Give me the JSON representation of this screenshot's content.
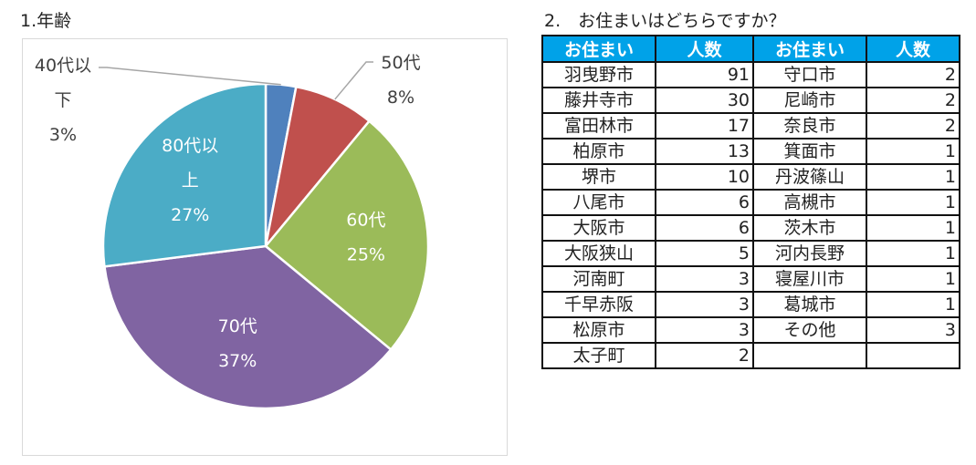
{
  "titles": {
    "age": "1.年齢",
    "residence": "2.　お住まいはどちらですか？"
  },
  "chart_data": {
    "type": "pie",
    "title": "1.年齢",
    "slices": [
      {
        "label": "40代以下",
        "label_lines": [
          "40代以",
          "下"
        ],
        "percent_label": "3%",
        "value": 3,
        "color": "#4F81BD"
      },
      {
        "label": "50代",
        "label_lines": [
          "50代"
        ],
        "percent_label": "8%",
        "value": 8,
        "color": "#C0504D"
      },
      {
        "label": "60代",
        "label_lines": [
          "60代"
        ],
        "percent_label": "25%",
        "value": 25,
        "color": "#9BBB59"
      },
      {
        "label": "70代",
        "label_lines": [
          "70代"
        ],
        "percent_label": "37%",
        "value": 37,
        "color": "#8064A2"
      },
      {
        "label": "80代以上",
        "label_lines": [
          "80代以",
          "上"
        ],
        "percent_label": "27%",
        "value": 27,
        "color": "#4BACC6"
      }
    ]
  },
  "table": {
    "headers": [
      "お住まい",
      "人数",
      "お住まい",
      "人数"
    ],
    "rows": [
      [
        "羽曳野市",
        "91",
        "守口市",
        "2"
      ],
      [
        "藤井寺市",
        "30",
        "尼崎市",
        "2"
      ],
      [
        "富田林市",
        "17",
        "奈良市",
        "2"
      ],
      [
        "柏原市",
        "13",
        "箕面市",
        "1"
      ],
      [
        "堺市",
        "10",
        "丹波篠山",
        "1"
      ],
      [
        "八尾市",
        "6",
        "高槻市",
        "1"
      ],
      [
        "大阪市",
        "6",
        "茨木市",
        "1"
      ],
      [
        "大阪狭山",
        "5",
        "河内長野",
        "1"
      ],
      [
        "河南町",
        "3",
        "寝屋川市",
        "1"
      ],
      [
        "千早赤阪",
        "3",
        "葛城市",
        "1"
      ],
      [
        "松原市",
        "3",
        "その他",
        "3"
      ],
      [
        "太子町",
        "2",
        "",
        ""
      ]
    ]
  }
}
